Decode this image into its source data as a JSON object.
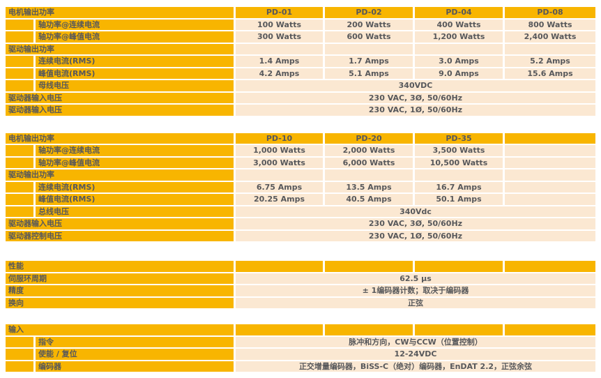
{
  "colors": {
    "header_orange": "#F8B500",
    "value_row_cream": "#FBE8D2",
    "text_gray": "#57585B",
    "grid_gap_white": "#FFFFFF"
  },
  "tables": [
    {
      "id": "motor-power-low",
      "header": {
        "label": "电机输出功率",
        "cols": [
          "PD-01",
          "PD-02",
          "PD-04",
          "PD-08"
        ]
      },
      "rows": [
        {
          "type": "sub",
          "label": "轴功率@连续电流",
          "values": [
            "100 Watts",
            "200 Watts",
            "400 Watts",
            "800 Watts"
          ]
        },
        {
          "type": "sub",
          "label": "轴功率@峰值电流",
          "values": [
            "300 Watts",
            "600 Watts",
            "1,200 Watts",
            "2,400 Watts"
          ]
        },
        {
          "type": "section",
          "label": "驱动输出功率",
          "values": [
            "",
            "",
            "",
            ""
          ]
        },
        {
          "type": "sub",
          "label": "连续电流(RMS)",
          "values": [
            "1.4 Amps",
            "1.7 Amps",
            "3.0 Amps",
            "5.2 Amps"
          ]
        },
        {
          "type": "sub",
          "label": "峰值电流(RMS)",
          "values": [
            "4.2 Amps",
            "5.1 Amps",
            "9.0 Amps",
            "15.6 Amps"
          ]
        },
        {
          "type": "sub-span",
          "label": "母线电压",
          "value": "340VDC"
        },
        {
          "type": "section-span",
          "label": "驱动器输入电压",
          "value": "230 VAC, 3Ø, 50/60Hz"
        },
        {
          "type": "section-span",
          "label": "驱动器输入电压",
          "value": "230 VAC, 1Ø, 50/60Hz"
        }
      ]
    },
    {
      "id": "motor-power-high",
      "header": {
        "label": "电机输出功率",
        "cols": [
          "PD-10",
          "PD-20",
          "PD-35",
          ""
        ]
      },
      "rows": [
        {
          "type": "sub",
          "label": "轴功率@连续电流",
          "values": [
            "1,000 Watts",
            "2,000 Watts",
            "3,500 Watts",
            ""
          ]
        },
        {
          "type": "sub",
          "label": "轴功率@峰值电流",
          "values": [
            "3,000 Watts",
            "6,000 Watts",
            "10,500 Watts",
            ""
          ]
        },
        {
          "type": "section",
          "label": "驱动输出功率",
          "values": [
            "",
            "",
            "",
            ""
          ]
        },
        {
          "type": "sub",
          "label": "连续电流(RMS)",
          "values": [
            "6.75 Amps",
            "13.5 Amps",
            "16.7 Amps",
            ""
          ]
        },
        {
          "type": "sub",
          "label": "峰值电流(RMS)",
          "values": [
            "20.25 Amps",
            "40.5 Amps",
            "50.1 Amps",
            ""
          ]
        },
        {
          "type": "sub-span",
          "label": "总线电压",
          "value": "340Vdc"
        },
        {
          "type": "section-span",
          "label": "驱动器输入电压",
          "value": "230 VAC, 3Ø, 50/60Hz"
        },
        {
          "type": "section-span",
          "label": "驱动器控制电压",
          "value": "230 VAC, 1Ø, 50/60Hz"
        }
      ]
    },
    {
      "id": "performance",
      "header": {
        "label": "性能",
        "cols": [
          "",
          "",
          "",
          ""
        ]
      },
      "rows": [
        {
          "type": "section-span",
          "label": "伺服环周期",
          "value": "62.5 μs"
        },
        {
          "type": "section-span",
          "label": "精度",
          "value": "± 1编码器计数；取决于编码器"
        },
        {
          "type": "section-span",
          "label": "换向",
          "value": "正弦"
        }
      ]
    },
    {
      "id": "inputs",
      "header": {
        "label": "输入",
        "cols": [
          "",
          "",
          "",
          ""
        ]
      },
      "rows": [
        {
          "type": "sub-span",
          "label": "指令",
          "value": "脉冲和方向，CW与CCW（位置控制）"
        },
        {
          "type": "sub-span",
          "label": "使能 / 复位",
          "value": "12-24VDC"
        },
        {
          "type": "sub-span",
          "label": "编码器",
          "value": "正交增量编码器，BiSS-C（绝对）编码器，EnDAT 2.2，正弦余弦"
        }
      ]
    }
  ]
}
